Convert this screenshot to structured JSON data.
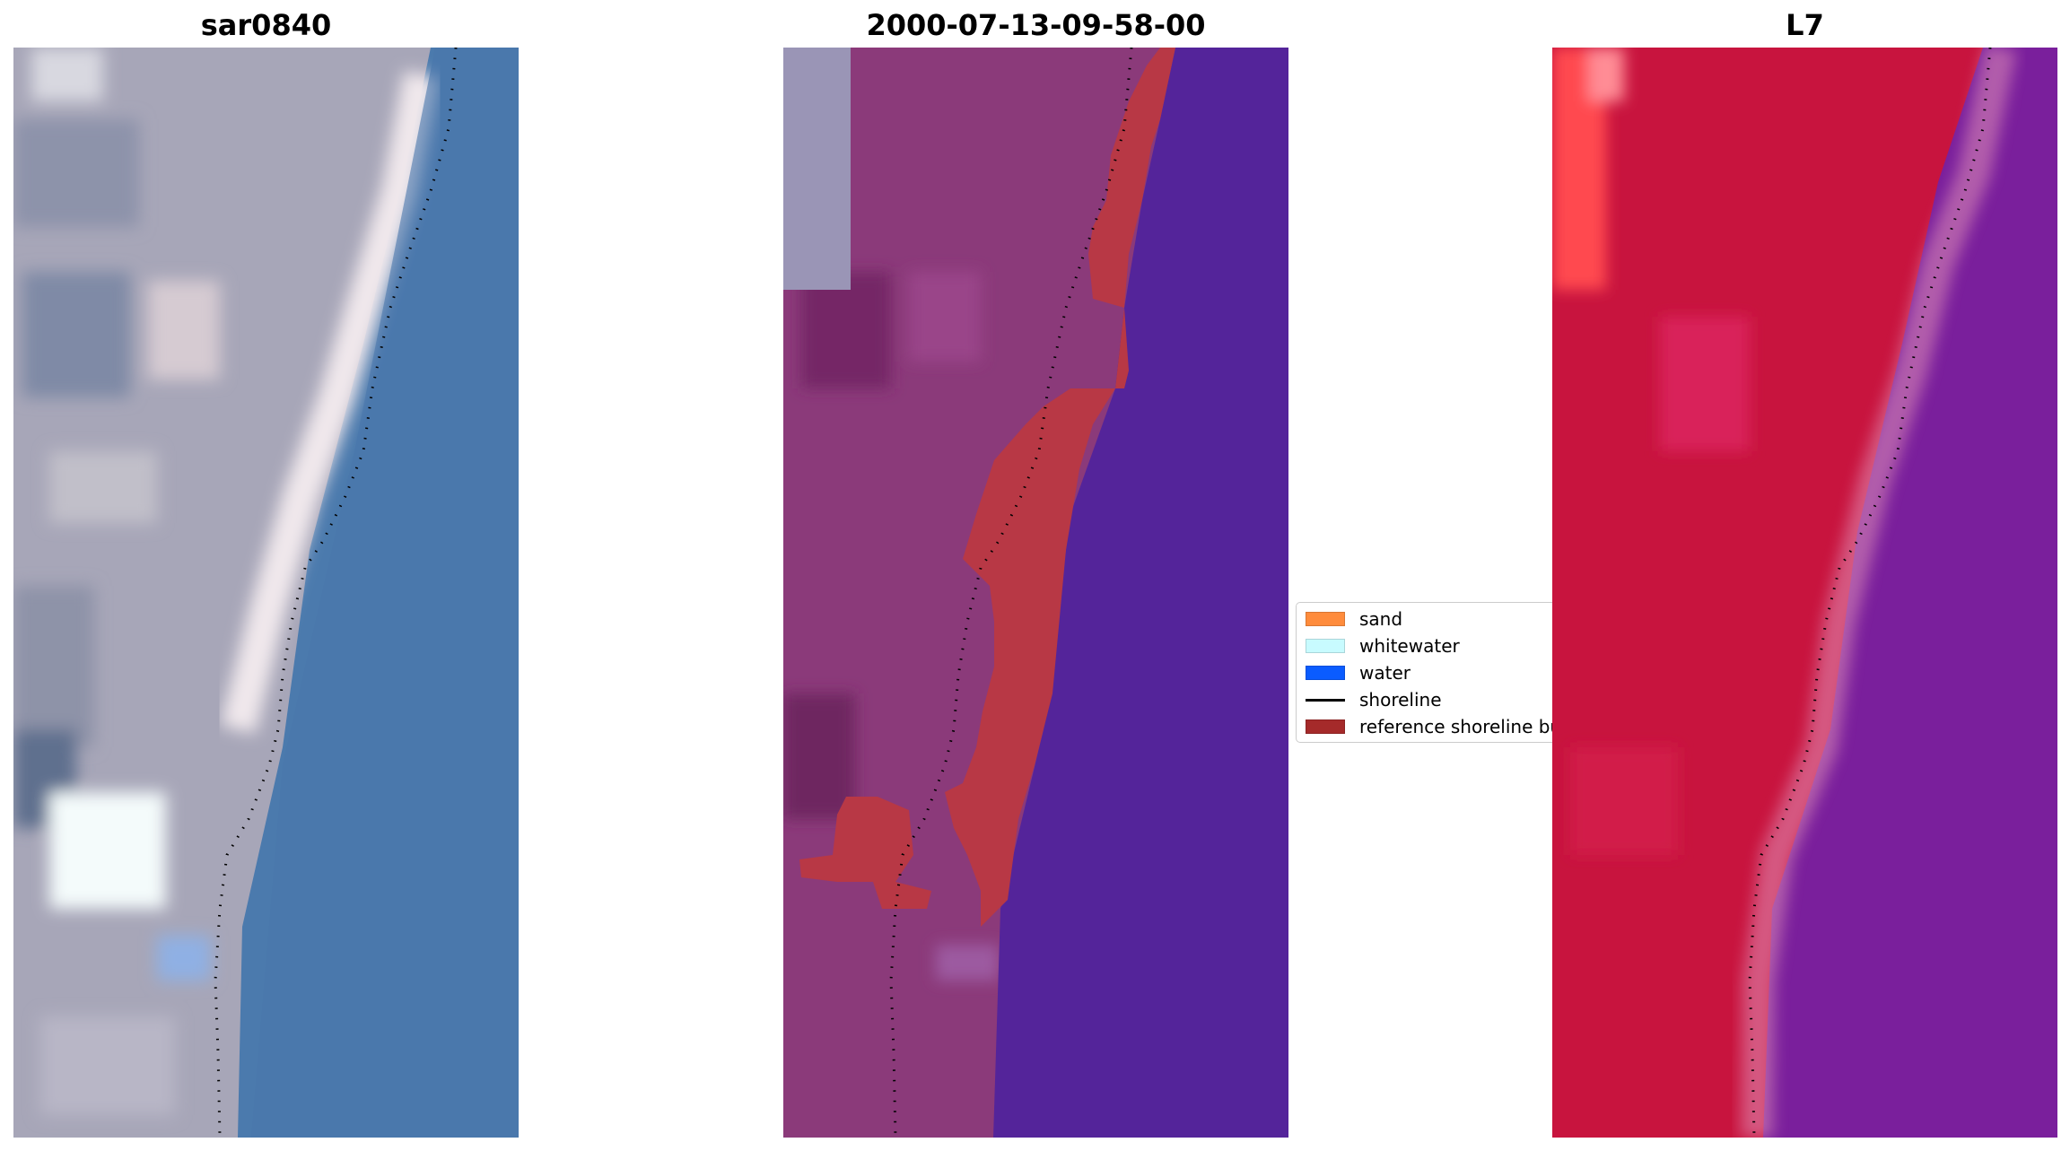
{
  "panels": [
    {
      "title": "sar0840",
      "rendering": "true-color RGB"
    },
    {
      "title": "2000-07-13-09-58-00",
      "rendering": "classified image"
    },
    {
      "title": "L7",
      "rendering": "false-color composite"
    }
  ],
  "legend": {
    "items": [
      {
        "label": "sand",
        "color": "#ff8c3c",
        "kind": "patch"
      },
      {
        "label": "whitewater",
        "color": "#c8fbff",
        "kind": "patch"
      },
      {
        "label": "water",
        "color": "#0a5cff",
        "kind": "patch"
      },
      {
        "label": "shoreline",
        "color": "#000000",
        "kind": "line"
      },
      {
        "label": "reference shoreline buffer",
        "color": "#a52a2a",
        "kind": "patch"
      }
    ]
  },
  "colors": {
    "rgb_land": "#a7a6b8",
    "rgb_water": "#4b7aad",
    "rgb_beach": "#e6e2e6",
    "class_land": "#8b3a7a",
    "class_buffer": "#b83845",
    "class_water": "#54249a",
    "false_land": "#c8143e",
    "false_water": "#7a1f9c",
    "shoreline_dots": "#000000"
  }
}
